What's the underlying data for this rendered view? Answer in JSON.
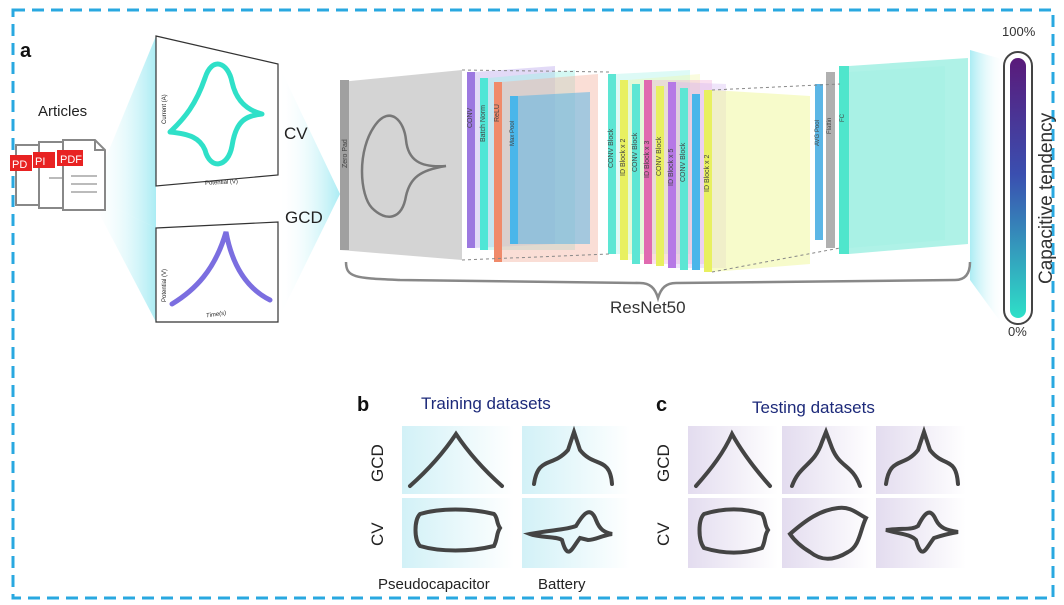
{
  "panel_a": {
    "letter": "a",
    "articles_label": "Articles",
    "pdf_label": "PDF",
    "pdf_partial": "PI",
    "pdf_partial2": "PD",
    "cv_label": "CV",
    "gcd_label": "GCD",
    "cv_plot": {
      "ylabel": "Current (A)",
      "xlabel": "Potential (V)"
    },
    "gcd_plot": {
      "ylabel": "Potential (V)",
      "xlabel": "Time(s)"
    },
    "resnet_label": "ResNet50",
    "layers": [
      "Zero Pad",
      "CONV",
      "Batch Norm",
      "ReLU",
      "Max Pool",
      "CONV Block",
      "ID Block x 2",
      "CONV Block",
      "ID Block x 3",
      "CONV Block",
      "ID Block x 5",
      "CONV Block",
      "ID Block x 2",
      "AVG Pool",
      "Flattin",
      "FC"
    ],
    "scale": {
      "top": "100%",
      "bottom": "0%",
      "title": "Capacitive tendency"
    }
  },
  "panel_b": {
    "letter": "b",
    "title": "Training datasets",
    "row_gcd": "GCD",
    "row_cv": "CV",
    "col1": "Pseudocapacitor",
    "col2": "Battery"
  },
  "panel_c": {
    "letter": "c",
    "title": "Testing datasets",
    "row_gcd": "GCD",
    "row_cv": "CV"
  },
  "colors": {
    "border": "#29a8e0",
    "cyan": "#2fe0c8",
    "purple": "#7b6ee0",
    "title_blue": "#1d2a7a",
    "curve": "#444444"
  }
}
